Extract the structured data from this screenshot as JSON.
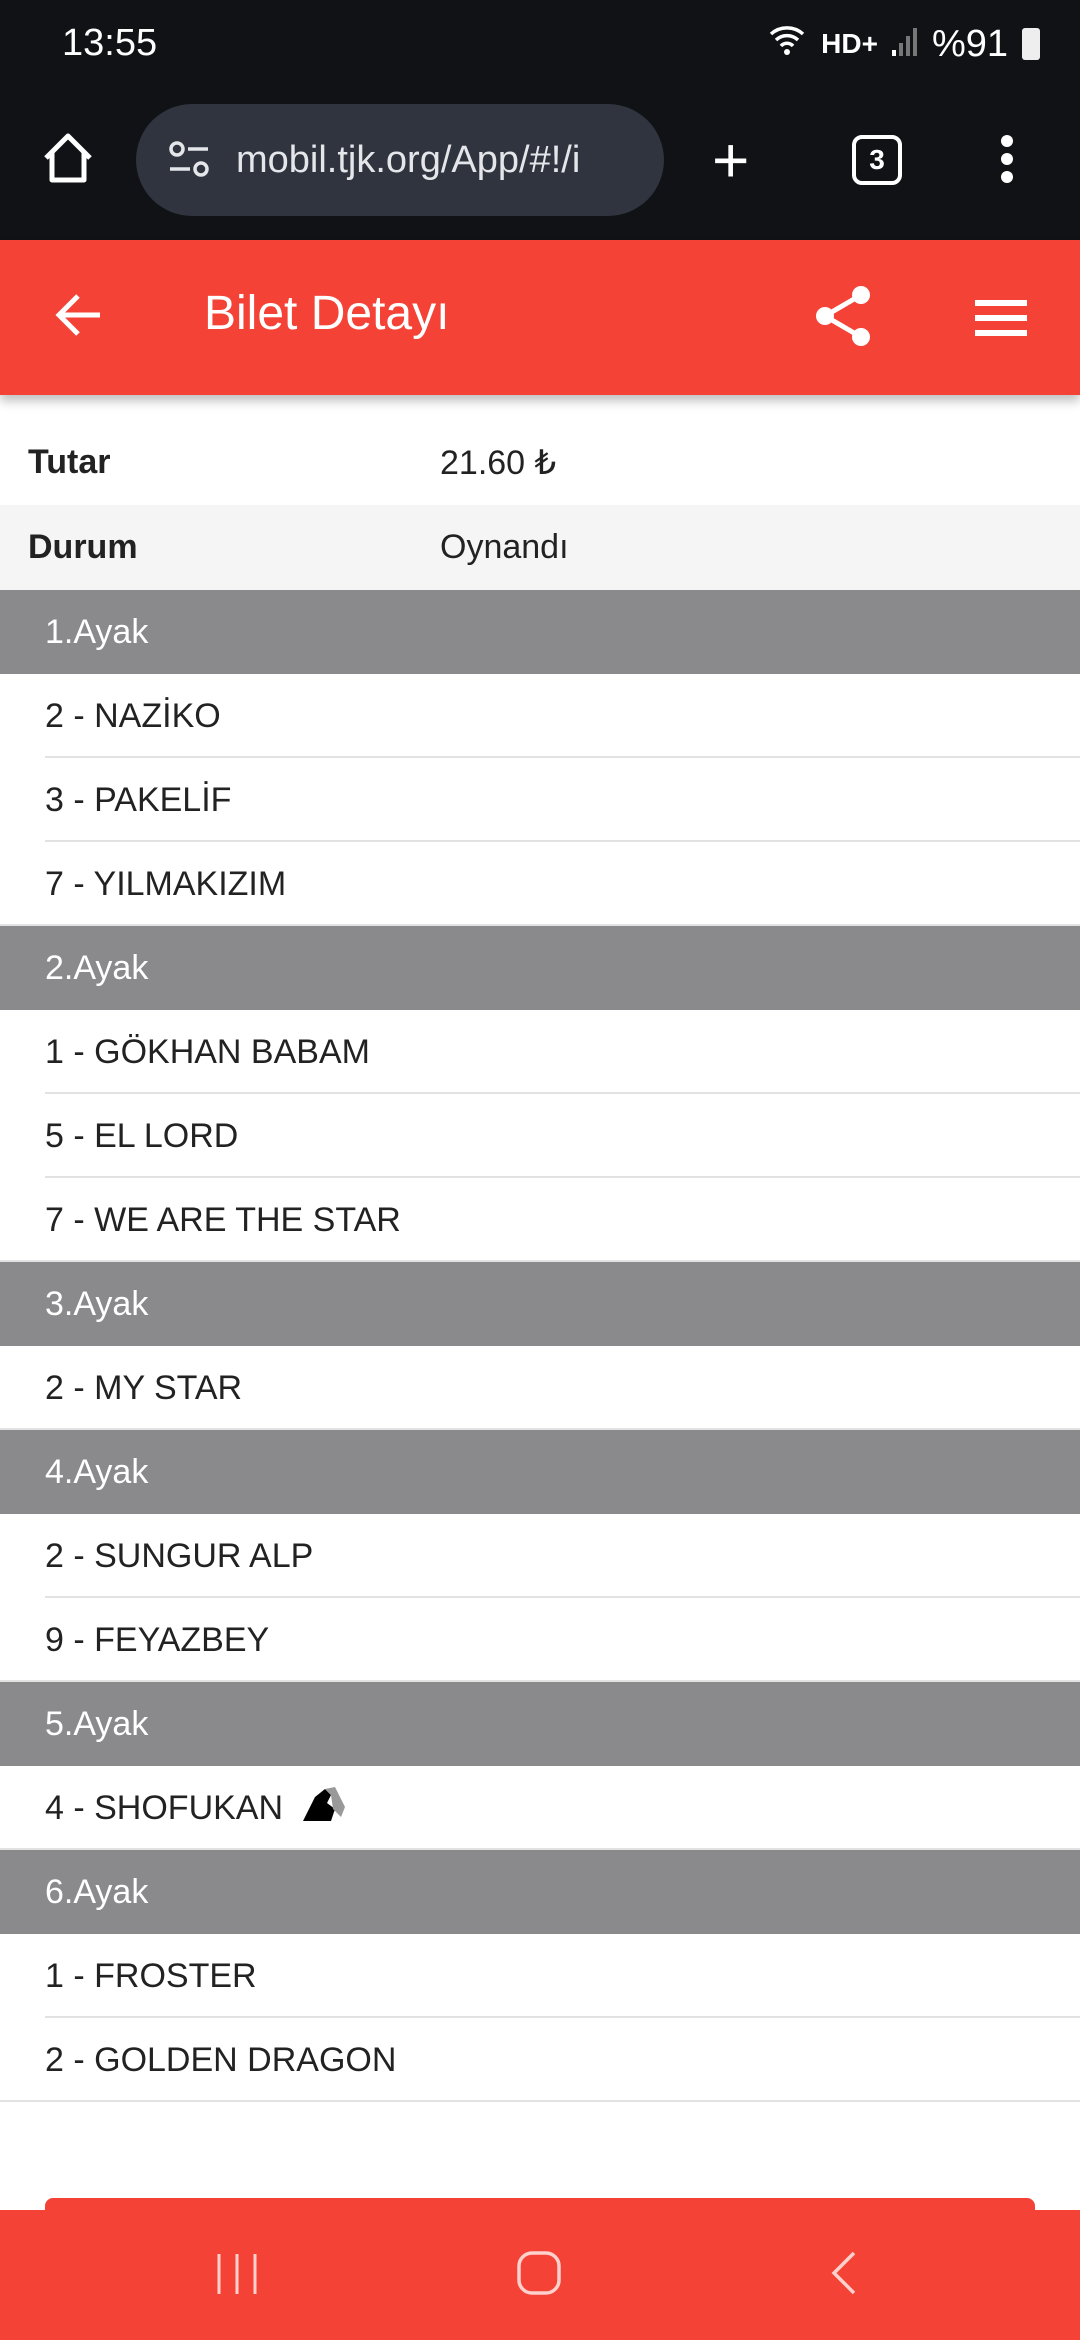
{
  "status_bar": {
    "time": "13:55",
    "battery": "%91",
    "network": "HD+"
  },
  "browser": {
    "url": "mobil.tjk.org/App/#!/i",
    "tab_count": "3"
  },
  "header": {
    "title": "Bilet Detayı",
    "accent": "#f44336"
  },
  "details": [
    {
      "label": "Tutar",
      "value": "21.60 ₺"
    },
    {
      "label": "Durum",
      "value": "Oynandı"
    }
  ],
  "legs": [
    {
      "title": "1.Ayak",
      "horses": [
        "2 - NAZİKO",
        "3 - PAKELİF",
        "7 - YILMAKIZIM"
      ]
    },
    {
      "title": "2.Ayak",
      "horses": [
        "1 - GÖKHAN BABAM",
        "5 - EL LORD",
        "7 - WE ARE THE STAR"
      ]
    },
    {
      "title": "3.Ayak",
      "horses": [
        "2 - MY STAR"
      ]
    },
    {
      "title": "4.Ayak",
      "horses": [
        "2 - SUNGUR ALP",
        "9 - FEYAZBEY"
      ]
    },
    {
      "title": "5.Ayak",
      "horses": [
        "4 - SHOFUKAN"
      ],
      "winner_icon": "horse-head-icon"
    },
    {
      "title": "6.Ayak",
      "horses": [
        "1 - FROSTER",
        "2 - GOLDEN DRAGON"
      ]
    }
  ]
}
